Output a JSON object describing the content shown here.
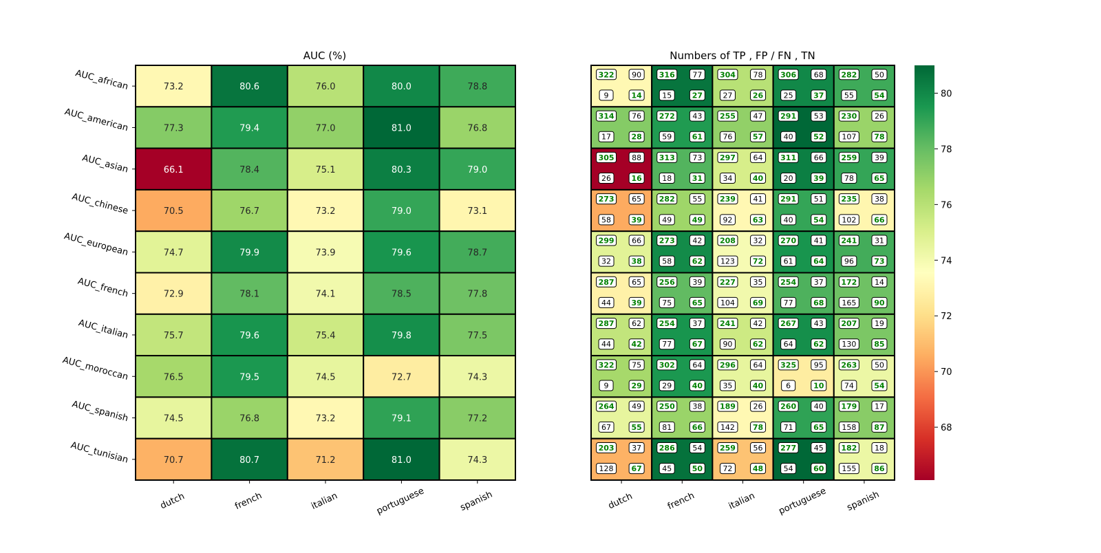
{
  "chart_data": [
    {
      "type": "heatmap",
      "title": "AUC (%)",
      "xlabel": "",
      "ylabel": "",
      "x_categories": [
        "dutch",
        "french",
        "italian",
        "portuguese",
        "spanish"
      ],
      "y_categories": [
        "AUC_african",
        "AUC_american",
        "AUC_asian",
        "AUC_chinese",
        "AUC_european",
        "AUC_french",
        "AUC_italian",
        "AUC_moroccan",
        "AUC_spanish",
        "AUC_tunisian"
      ],
      "values": [
        [
          73.2,
          80.6,
          76.0,
          80.0,
          78.8
        ],
        [
          77.3,
          79.4,
          77.0,
          81.0,
          76.8
        ],
        [
          66.1,
          78.4,
          75.1,
          80.3,
          79.0
        ],
        [
          70.5,
          76.7,
          73.2,
          79.0,
          73.1
        ],
        [
          74.7,
          79.9,
          73.9,
          79.6,
          78.7
        ],
        [
          72.9,
          78.1,
          74.1,
          78.5,
          77.8
        ],
        [
          75.7,
          79.6,
          75.4,
          79.8,
          77.5
        ],
        [
          76.5,
          79.5,
          74.5,
          72.7,
          74.3
        ],
        [
          74.5,
          76.8,
          73.2,
          79.1,
          77.2
        ],
        [
          70.7,
          80.7,
          71.2,
          81.0,
          74.3
        ]
      ],
      "colormap": "RdYlGn",
      "color_range": [
        66.1,
        81.0
      ]
    },
    {
      "type": "heatmap",
      "title": "Numbers of TP , FP / FN , TN",
      "xlabel": "",
      "ylabel": "",
      "x_categories": [
        "dutch",
        "french",
        "italian",
        "portuguese",
        "spanish"
      ],
      "cell_fields": [
        "TP",
        "FP",
        "FN",
        "TN"
      ],
      "counts": [
        [
          [
            322,
            90,
            9,
            14
          ],
          [
            316,
            77,
            15,
            27
          ],
          [
            304,
            78,
            27,
            26
          ],
          [
            306,
            68,
            25,
            37
          ],
          [
            282,
            50,
            55,
            54
          ]
        ],
        [
          [
            314,
            76,
            17,
            28
          ],
          [
            272,
            43,
            59,
            61
          ],
          [
            255,
            47,
            76,
            57
          ],
          [
            291,
            53,
            40,
            52
          ],
          [
            230,
            26,
            107,
            78
          ]
        ],
        [
          [
            305,
            88,
            26,
            16
          ],
          [
            313,
            73,
            18,
            31
          ],
          [
            297,
            64,
            34,
            40
          ],
          [
            311,
            66,
            20,
            39
          ],
          [
            259,
            39,
            78,
            65
          ]
        ],
        [
          [
            273,
            65,
            58,
            39
          ],
          [
            282,
            55,
            49,
            49
          ],
          [
            239,
            41,
            92,
            63
          ],
          [
            291,
            51,
            40,
            54
          ],
          [
            235,
            38,
            102,
            66
          ]
        ],
        [
          [
            299,
            66,
            32,
            38
          ],
          [
            273,
            42,
            58,
            62
          ],
          [
            208,
            32,
            123,
            72
          ],
          [
            270,
            41,
            61,
            64
          ],
          [
            241,
            31,
            96,
            73
          ]
        ],
        [
          [
            287,
            65,
            44,
            39
          ],
          [
            256,
            39,
            75,
            65
          ],
          [
            227,
            35,
            104,
            69
          ],
          [
            254,
            37,
            77,
            68
          ],
          [
            172,
            14,
            165,
            90
          ]
        ],
        [
          [
            287,
            62,
            44,
            42
          ],
          [
            254,
            37,
            77,
            67
          ],
          [
            241,
            42,
            90,
            62
          ],
          [
            267,
            43,
            64,
            62
          ],
          [
            207,
            19,
            130,
            85
          ]
        ],
        [
          [
            322,
            75,
            9,
            29
          ],
          [
            302,
            64,
            29,
            40
          ],
          [
            296,
            64,
            35,
            40
          ],
          [
            325,
            95,
            6,
            10
          ],
          [
            263,
            50,
            74,
            54
          ]
        ],
        [
          [
            264,
            49,
            67,
            55
          ],
          [
            250,
            38,
            81,
            66
          ],
          [
            189,
            26,
            142,
            78
          ],
          [
            260,
            40,
            71,
            65
          ],
          [
            179,
            17,
            158,
            87
          ]
        ],
        [
          [
            203,
            37,
            128,
            67
          ],
          [
            286,
            54,
            45,
            50
          ],
          [
            259,
            56,
            72,
            48
          ],
          [
            277,
            45,
            54,
            60
          ],
          [
            182,
            18,
            155,
            86
          ]
        ]
      ],
      "cell_colors_from": "AUC (%)",
      "colorbar_ticks": [
        68,
        70,
        72,
        74,
        76,
        78,
        80
      ],
      "colorbar_range": [
        66.1,
        81.0
      ],
      "colormap": "RdYlGn",
      "highlight_color": "#008000"
    }
  ]
}
